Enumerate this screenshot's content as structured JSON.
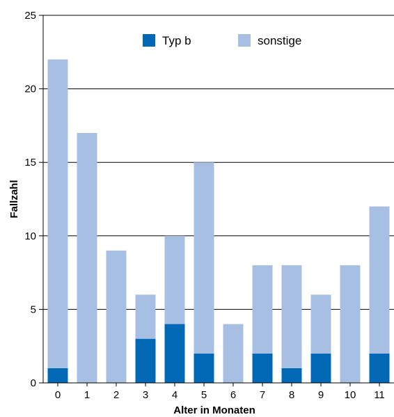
{
  "chart_data": {
    "type": "bar",
    "stacked": true,
    "categories": [
      "0",
      "1",
      "2",
      "3",
      "4",
      "5",
      "6",
      "7",
      "8",
      "9",
      "10",
      "11"
    ],
    "series": [
      {
        "name": "Typ b",
        "color": "#0068b4",
        "values": [
          1,
          0,
          0,
          3,
          4,
          2,
          0,
          2,
          1,
          2,
          0,
          2
        ]
      },
      {
        "name": "sonstige",
        "color": "#a8bfe4",
        "values": [
          21,
          17,
          9,
          3,
          6,
          13,
          4,
          6,
          7,
          4,
          8,
          10
        ]
      }
    ],
    "xlabel": "Alter in Monaten",
    "ylabel": "Fallzahl",
    "ylim": [
      0,
      25
    ],
    "yticks": [
      0,
      5,
      10,
      15,
      20,
      25
    ],
    "grid": true,
    "legend_position": "top"
  }
}
